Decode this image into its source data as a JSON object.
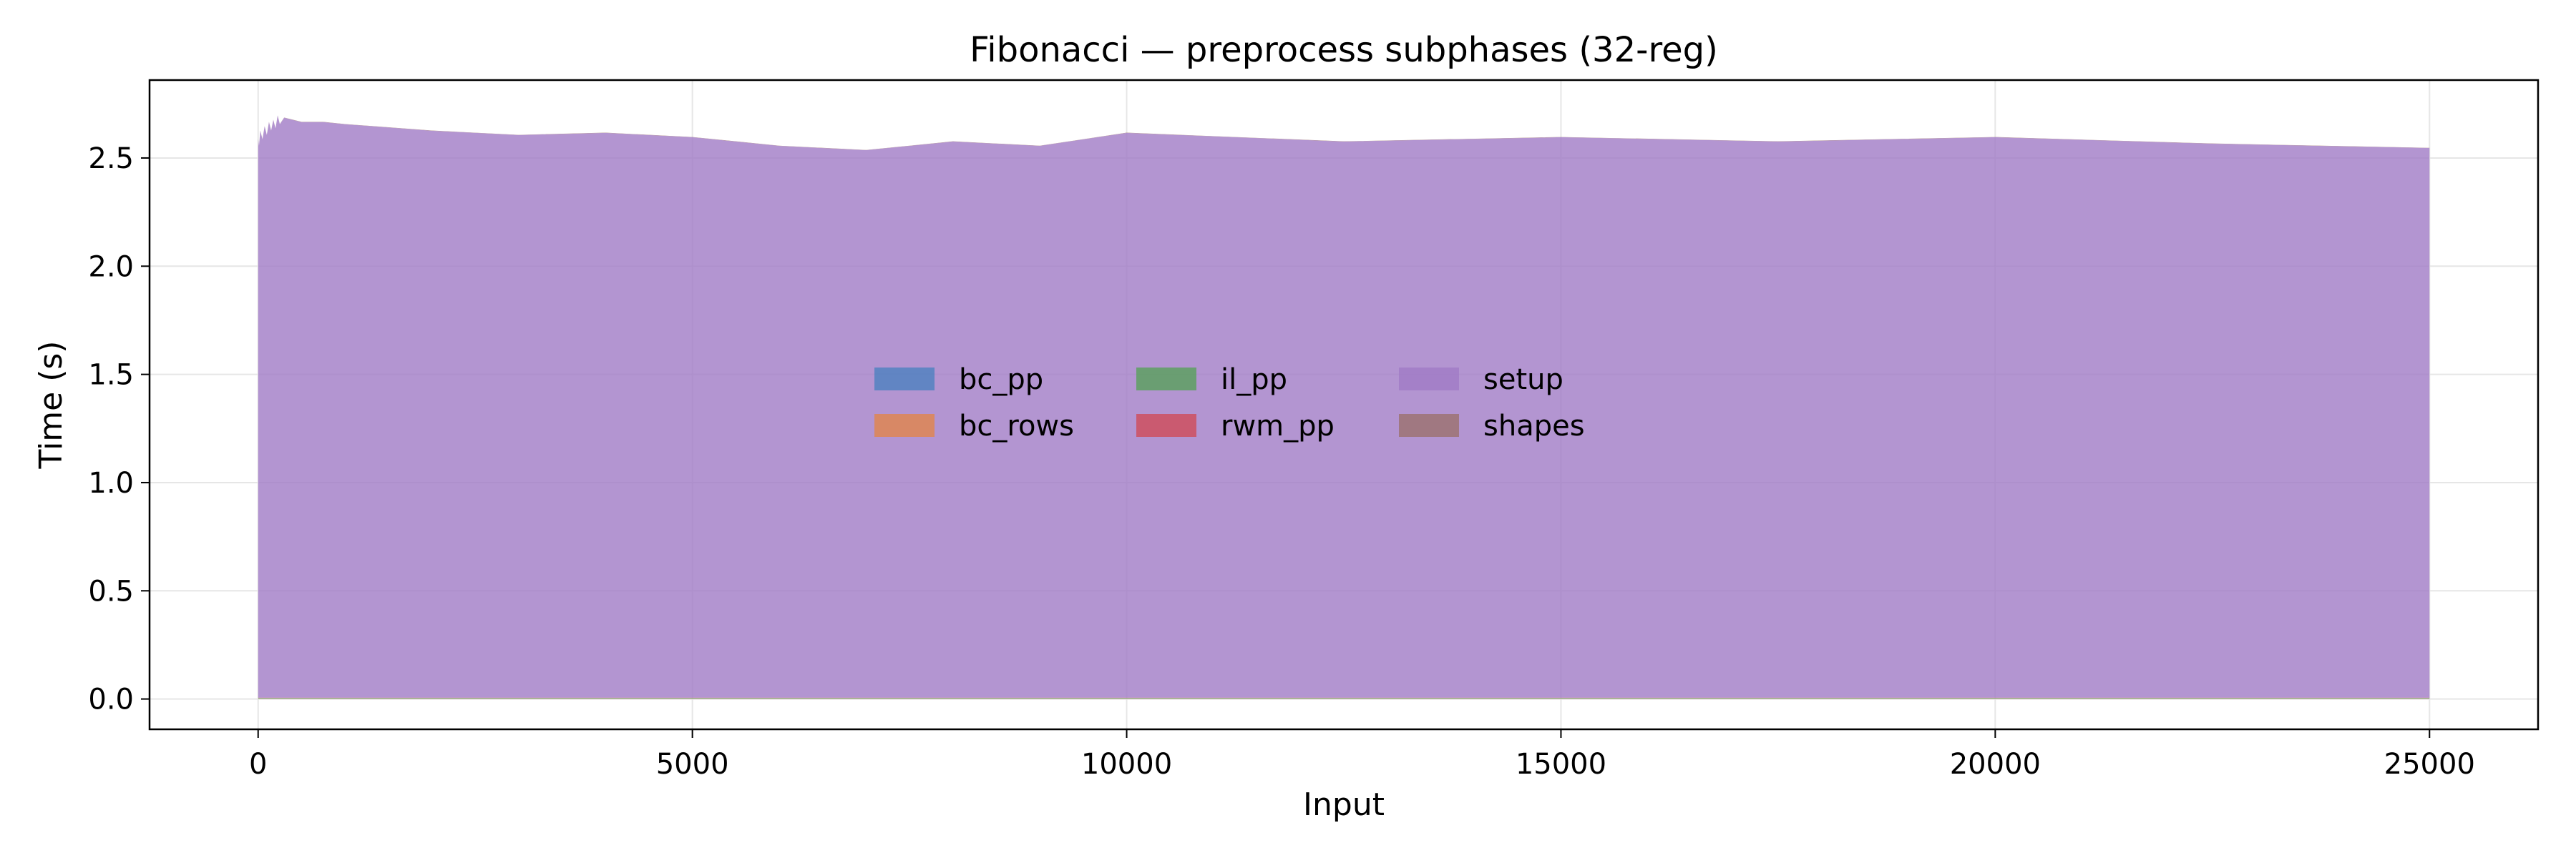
{
  "chart_data": {
    "type": "area",
    "title": "Fibonacci — preprocess subphases (32-reg)",
    "xlabel": "Input",
    "ylabel": "Time (s)",
    "xlim": [
      -1250,
      26250
    ],
    "ylim": [
      -0.14,
      2.86
    ],
    "xticks": [
      0,
      5000,
      10000,
      15000,
      20000,
      25000
    ],
    "xtick_labels": [
      "0",
      "5000",
      "10000",
      "15000",
      "20000",
      "25000"
    ],
    "yticks": [
      0.0,
      0.5,
      1.0,
      1.5,
      2.0,
      2.5
    ],
    "ytick_labels": [
      "0.0",
      "0.5",
      "1.0",
      "1.5",
      "2.0",
      "2.5"
    ],
    "grid": true,
    "stacked": true,
    "legend": {
      "placement": "center",
      "columns": 4
    },
    "x": [
      1,
      10,
      25,
      50,
      75,
      100,
      125,
      150,
      175,
      200,
      225,
      250,
      300,
      400,
      500,
      750,
      1000,
      2000,
      3000,
      4000,
      5000,
      6000,
      7000,
      8000,
      9000,
      10000,
      12500,
      15000,
      17500,
      20000,
      22500,
      25000
    ],
    "series": [
      {
        "name": "bc_pp",
        "color": "#4c81bf",
        "values": [
          0.001,
          0.001,
          0.001,
          0.001,
          0.001,
          0.001,
          0.001,
          0.001,
          0.001,
          0.001,
          0.001,
          0.001,
          0.001,
          0.001,
          0.001,
          0.001,
          0.001,
          0.001,
          0.001,
          0.001,
          0.001,
          0.001,
          0.001,
          0.001,
          0.001,
          0.001,
          0.001,
          0.001,
          0.001,
          0.001,
          0.001,
          0.001
        ]
      },
      {
        "name": "bc_rows",
        "color": "#e1844a",
        "values": [
          0.001,
          0.001,
          0.001,
          0.001,
          0.001,
          0.001,
          0.001,
          0.001,
          0.001,
          0.001,
          0.001,
          0.001,
          0.001,
          0.001,
          0.001,
          0.001,
          0.001,
          0.001,
          0.001,
          0.001,
          0.001,
          0.001,
          0.001,
          0.001,
          0.001,
          0.001,
          0.001,
          0.001,
          0.001,
          0.001,
          0.001,
          0.001
        ]
      },
      {
        "name": "il_pp",
        "color": "#58a05a",
        "values": [
          0.003,
          0.003,
          0.003,
          0.003,
          0.003,
          0.003,
          0.003,
          0.003,
          0.003,
          0.003,
          0.003,
          0.003,
          0.003,
          0.003,
          0.003,
          0.003,
          0.003,
          0.003,
          0.003,
          0.003,
          0.003,
          0.003,
          0.003,
          0.003,
          0.003,
          0.003,
          0.003,
          0.003,
          0.003,
          0.003,
          0.003,
          0.003
        ]
      },
      {
        "name": "rwm_pp",
        "color": "#cf4b57",
        "values": [
          0.001,
          0.001,
          0.001,
          0.001,
          0.001,
          0.001,
          0.001,
          0.001,
          0.001,
          0.001,
          0.001,
          0.001,
          0.001,
          0.001,
          0.001,
          0.001,
          0.001,
          0.001,
          0.001,
          0.001,
          0.001,
          0.001,
          0.001,
          0.001,
          0.001,
          0.001,
          0.001,
          0.001,
          0.001,
          0.001,
          0.001,
          0.001
        ]
      },
      {
        "name": "setup",
        "color": "#a07bc6",
        "values": [
          2.58,
          2.55,
          2.62,
          2.58,
          2.64,
          2.6,
          2.66,
          2.62,
          2.67,
          2.63,
          2.69,
          2.65,
          2.68,
          2.67,
          2.66,
          2.66,
          2.65,
          2.62,
          2.6,
          2.61,
          2.59,
          2.55,
          2.53,
          2.57,
          2.55,
          2.61,
          2.57,
          2.59,
          2.57,
          2.59,
          2.56,
          2.54
        ]
      },
      {
        "name": "shapes",
        "color": "#9b706d",
        "values": [
          0.001,
          0.001,
          0.001,
          0.001,
          0.001,
          0.001,
          0.001,
          0.001,
          0.001,
          0.001,
          0.001,
          0.001,
          0.001,
          0.001,
          0.001,
          0.001,
          0.001,
          0.001,
          0.001,
          0.001,
          0.001,
          0.001,
          0.001,
          0.001,
          0.001,
          0.001,
          0.001,
          0.001,
          0.001,
          0.001,
          0.001,
          0.001
        ]
      }
    ]
  }
}
